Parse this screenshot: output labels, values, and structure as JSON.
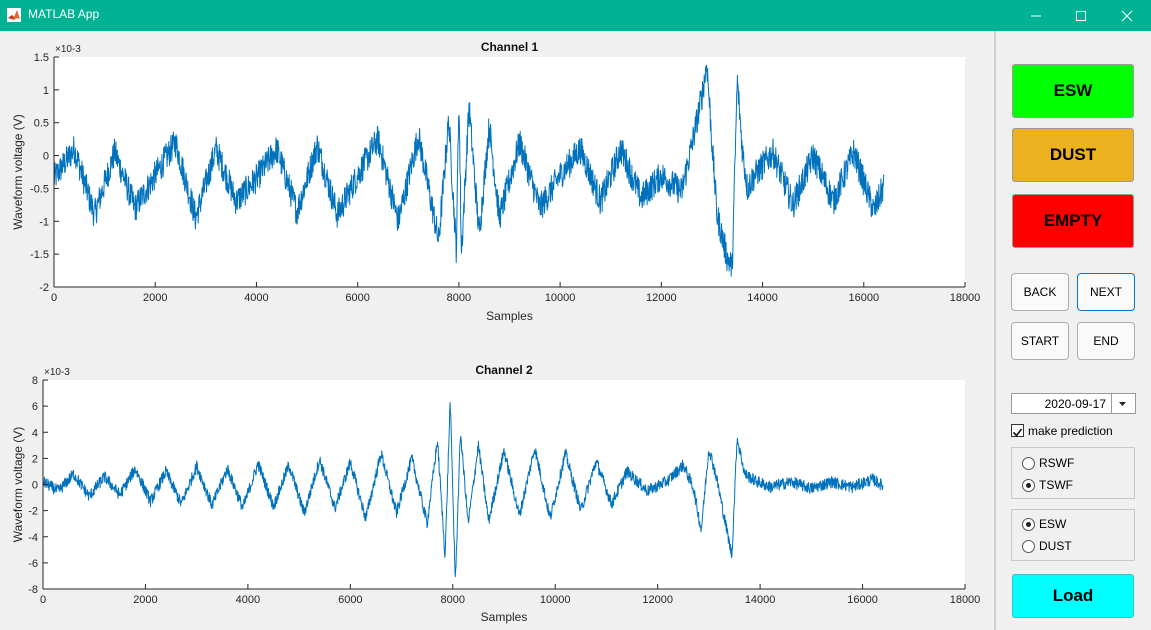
{
  "window": {
    "title": "MATLAB App"
  },
  "colors": {
    "titlebar": "#00b294",
    "line": "#0072bd",
    "esw": "#00ff00",
    "dust": "#edb120",
    "empty": "#ff0000",
    "load": "#00ffff"
  },
  "label_buttons": {
    "esw": "ESW",
    "dust": "DUST",
    "empty": "EMPTY"
  },
  "nav": {
    "back": "BACK",
    "next": "NEXT",
    "start": "START",
    "end": "END"
  },
  "date": {
    "value": "2020-09-17"
  },
  "prediction": {
    "label": "make prediction",
    "checked": true
  },
  "waveform_group": {
    "options": [
      "RSWF",
      "TSWF"
    ],
    "selected": "TSWF"
  },
  "class_group": {
    "options": [
      "ESW",
      "DUST"
    ],
    "selected": "ESW"
  },
  "load_label": "Load",
  "chart_data": [
    {
      "type": "line",
      "title": "Channel 1",
      "xlabel": "Samples",
      "ylabel": "Waveform voltage (V)",
      "y_exponent": "×10-3",
      "xlim": [
        0,
        18000
      ],
      "ylim": [
        -2,
        1.5
      ],
      "xticks": [
        0,
        2000,
        4000,
        6000,
        8000,
        10000,
        12000,
        14000,
        16000,
        18000
      ],
      "xtick_labels": [
        "0",
        "2000",
        "4000",
        "6000",
        "8000",
        "10000",
        "12000",
        "14000",
        "16000",
        "18000"
      ],
      "yticks": [
        -2,
        -1.5,
        -1,
        -0.5,
        0,
        0.5,
        1,
        1.5
      ],
      "ytick_labels": [
        "-2",
        "-1.5",
        "-1",
        "-0.5",
        "0",
        "0.5",
        "1",
        "1.5"
      ],
      "grid": false,
      "series": [
        {
          "x": [
            0,
            400,
            800,
            1200,
            1600,
            2000,
            2400,
            2800,
            3200,
            3600,
            4000,
            4400,
            4800,
            5200,
            5600,
            6000,
            6400,
            6800,
            7200,
            7600,
            7800,
            7950,
            8000,
            8050,
            8200,
            8400,
            8600,
            8800,
            9200,
            9600,
            10000,
            10400,
            10800,
            11200,
            11600,
            12000,
            12400,
            12600,
            12800,
            12900,
            13000,
            13100,
            13300,
            13400,
            13500,
            13600,
            13700,
            13800,
            14200,
            14600,
            15000,
            15400,
            15800,
            16200,
            16400
          ],
          "y": [
            -0.35,
            0.1,
            -0.9,
            0.05,
            -0.8,
            -0.3,
            0.2,
            -0.95,
            0.1,
            -0.7,
            -0.35,
            0.1,
            -0.85,
            0.15,
            -0.9,
            -0.3,
            0.25,
            -1.0,
            0.3,
            -1.3,
            0.55,
            -1.45,
            0.9,
            -1.5,
            0.75,
            -1.2,
            0.45,
            -0.95,
            0.2,
            -0.8,
            -0.3,
            0.1,
            -0.7,
            0.1,
            -0.65,
            -0.3,
            -0.55,
            0.15,
            0.9,
            1.4,
            0.2,
            -0.9,
            -1.55,
            -1.7,
            1.15,
            0.1,
            -0.5,
            -0.35,
            0.05,
            -0.75,
            0.0,
            -0.7,
            0.05,
            -0.85,
            -0.45
          ]
        }
      ]
    },
    {
      "type": "line",
      "title": "Channel 2",
      "xlabel": "Samples",
      "ylabel": "Waveform voltage (V)",
      "y_exponent": "×10-3",
      "xlim": [
        0,
        18000
      ],
      "ylim": [
        -8,
        8
      ],
      "xticks": [
        0,
        2000,
        4000,
        6000,
        8000,
        10000,
        12000,
        14000,
        16000,
        18000
      ],
      "xtick_labels": [
        "0",
        "2000",
        "4000",
        "6000",
        "8000",
        "10000",
        "12000",
        "14000",
        "16000",
        "18000"
      ],
      "yticks": [
        -8,
        -6,
        -4,
        -2,
        0,
        2,
        4,
        6,
        8
      ],
      "ytick_labels": [
        "-8",
        "-6",
        "-4",
        "-2",
        "0",
        "2",
        "4",
        "6",
        "8"
      ],
      "grid": false,
      "series": [
        {
          "x": [
            0,
            300,
            600,
            900,
            1200,
            1500,
            1800,
            2100,
            2400,
            2700,
            3000,
            3300,
            3600,
            3900,
            4200,
            4500,
            4800,
            5100,
            5400,
            5700,
            6000,
            6300,
            6600,
            6900,
            7200,
            7500,
            7700,
            7850,
            7950,
            8050,
            8150,
            8300,
            8500,
            8700,
            9000,
            9300,
            9600,
            9900,
            10200,
            10500,
            10800,
            11100,
            11400,
            11800,
            12200,
            12500,
            12700,
            12850,
            13000,
            13150,
            13300,
            13450,
            13550,
            13700,
            13900,
            14200,
            14600,
            15000,
            15400,
            15800,
            16200,
            16400
          ],
          "y": [
            0.2,
            -0.5,
            0.8,
            -0.9,
            0.6,
            -0.8,
            1.2,
            -1.3,
            1.0,
            -1.5,
            1.4,
            -1.6,
            1.2,
            -1.8,
            1.6,
            -1.7,
            1.5,
            -2.2,
            1.9,
            -1.8,
            1.7,
            -2.6,
            2.4,
            -2.2,
            2.0,
            -3.0,
            3.4,
            -5.5,
            6.5,
            -7.5,
            4.0,
            -3.0,
            3.0,
            -2.8,
            2.6,
            -2.4,
            2.8,
            -2.6,
            2.4,
            -2.0,
            1.8,
            -1.5,
            1.0,
            -0.5,
            0.3,
            1.5,
            -0.3,
            -3.5,
            2.8,
            0.5,
            -2.5,
            -5.5,
            3.6,
            0.8,
            0.3,
            -0.2,
            0.2,
            -0.3,
            0.2,
            -0.2,
            0.4,
            -0.1
          ]
        }
      ]
    }
  ]
}
